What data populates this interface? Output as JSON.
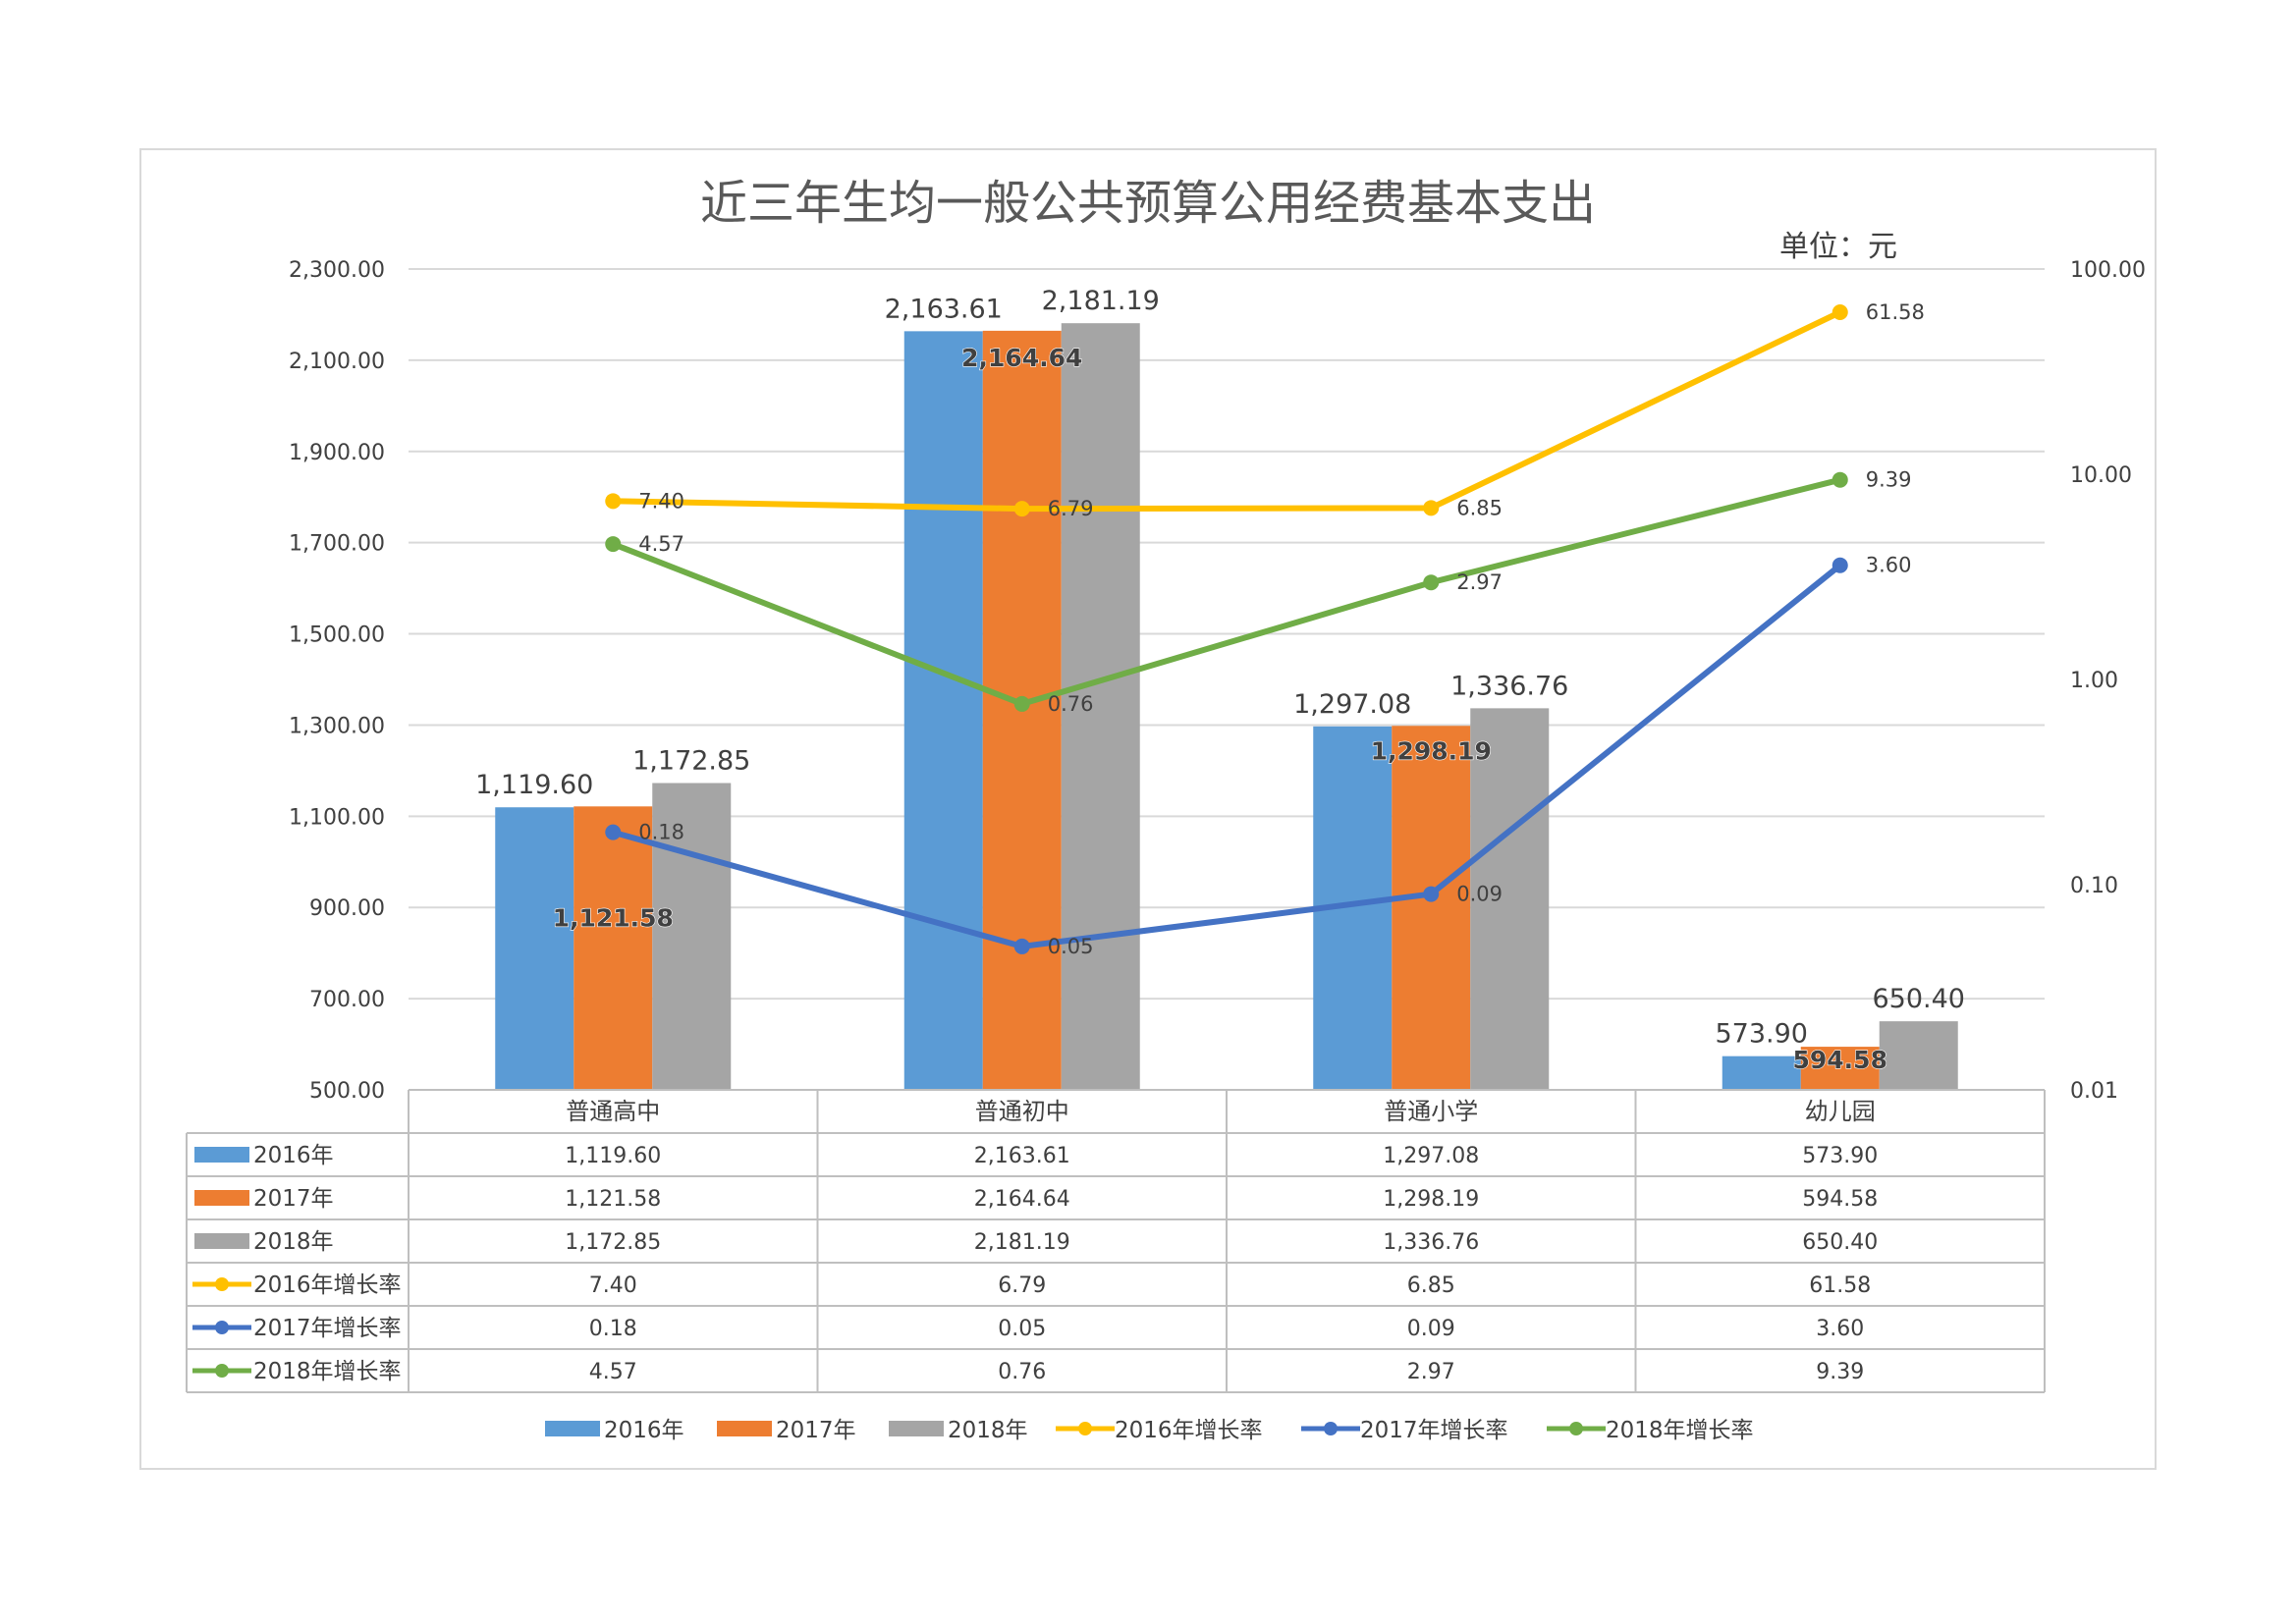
{
  "chart_data": {
    "type": "bar",
    "title": "近三年生均一般公共预算公用经费基本支出",
    "unit_label": "单位：元",
    "categories": [
      "普通高中",
      "普通初中",
      "普通小学",
      "幼儿园"
    ],
    "bar_series": [
      {
        "name": "2016年",
        "color": "#5b9bd5",
        "values": [
          1119.6,
          2163.61,
          1297.08,
          573.9
        ],
        "labels": [
          "1,119.60",
          "2,163.61",
          "1,297.08",
          "573.90"
        ]
      },
      {
        "name": "2017年",
        "color": "#ed7d31",
        "values": [
          1121.58,
          2164.64,
          1298.19,
          594.58
        ],
        "labels": [
          "1,121.58",
          "2,164.64",
          "1,298.19",
          "594.58"
        ]
      },
      {
        "name": "2018年",
        "color": "#a5a5a5",
        "values": [
          1172.85,
          2181.19,
          1336.76,
          650.4
        ],
        "labels": [
          "1,172.85",
          "2,181.19",
          "1,336.76",
          "650.40"
        ]
      }
    ],
    "line_series": [
      {
        "name": "2016年增长率",
        "color": "#ffc000",
        "values": [
          7.4,
          6.79,
          6.85,
          61.58
        ],
        "labels": [
          "7.40",
          "6.79",
          "6.85",
          "61.58"
        ]
      },
      {
        "name": "2017年增长率",
        "color": "#4472c4",
        "values": [
          0.18,
          0.05,
          0.09,
          3.6
        ],
        "labels": [
          "0.18",
          "0.05",
          "0.09",
          "3.60"
        ]
      },
      {
        "name": "2018年增长率",
        "color": "#70ad47",
        "values": [
          4.57,
          0.76,
          2.97,
          9.39
        ],
        "labels": [
          "4.57",
          "0.76",
          "2.97",
          "9.39"
        ]
      }
    ],
    "y_left": {
      "min": 500,
      "max": 2300,
      "ticks": [
        500,
        700,
        900,
        1100,
        1300,
        1500,
        1700,
        1900,
        2100,
        2300
      ],
      "tick_labels": [
        "500.00",
        "700.00",
        "900.00",
        "1,100.00",
        "1,300.00",
        "1,500.00",
        "1,700.00",
        "1,900.00",
        "2,100.00",
        "2,300.00"
      ]
    },
    "y_right": {
      "scale": "log",
      "min": 0.01,
      "max": 100,
      "ticks": [
        0.01,
        0.1,
        1,
        10,
        100
      ],
      "tick_labels": [
        "0.01",
        "0.10",
        "1.00",
        "10.00",
        "100.00"
      ]
    },
    "grid": true,
    "data_table": true,
    "legend_position": "bottom"
  }
}
